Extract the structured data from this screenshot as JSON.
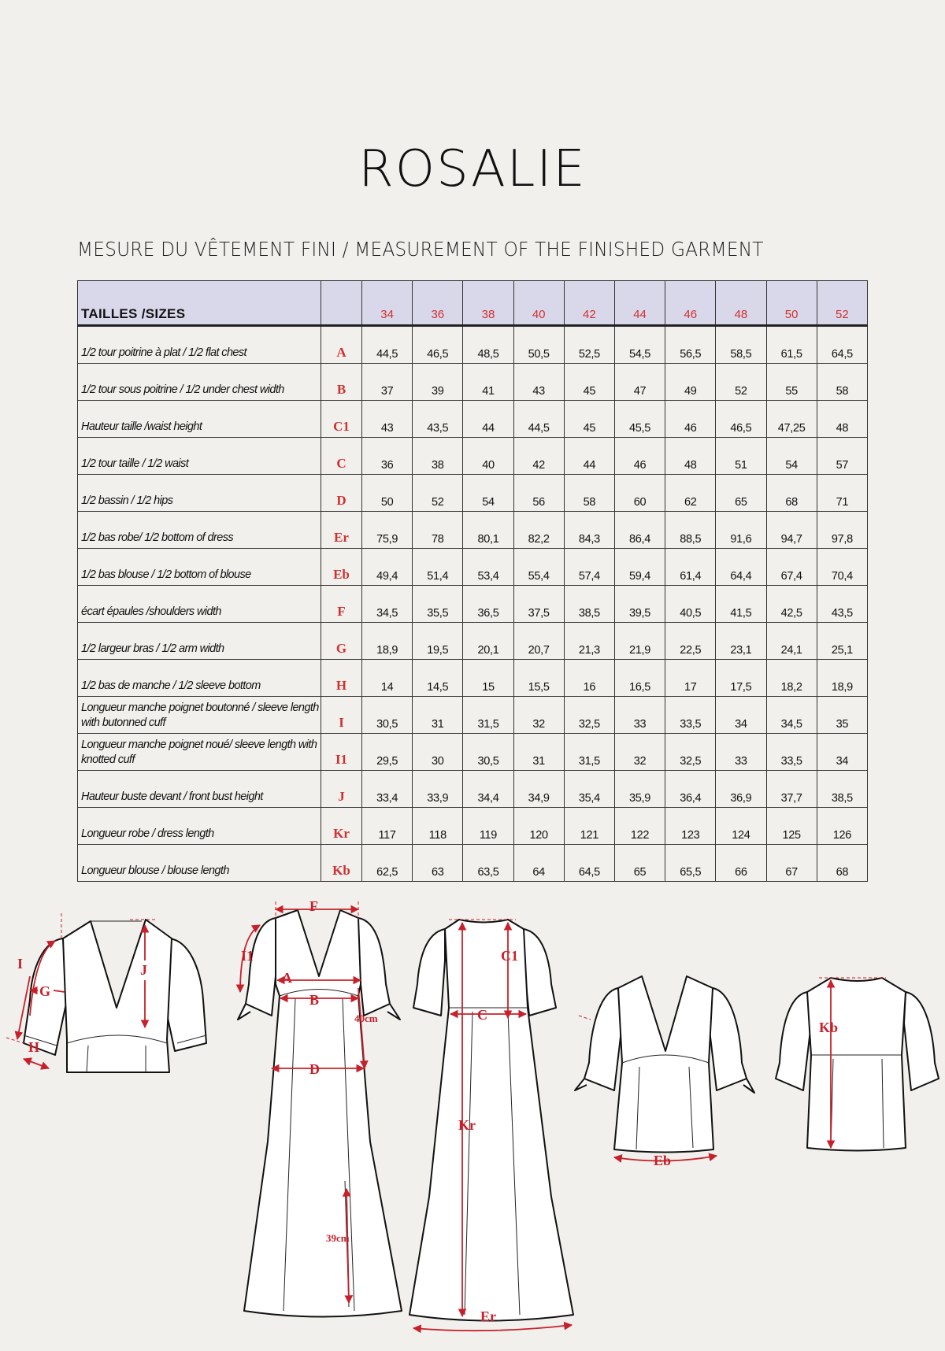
{
  "title": "ROSALIE",
  "subtitle": "MESURE DU VÊTEMENT FINI / MEASUREMENT OF THE FINISHED GARMENT",
  "colors": {
    "accent_red": "#c8202a",
    "header_bg": "#d9d8ea",
    "background": "#f1f0ec"
  },
  "table": {
    "header_label": "TAILLES /SIZES",
    "sizes": [
      "34",
      "36",
      "38",
      "40",
      "42",
      "44",
      "46",
      "48",
      "50",
      "52"
    ],
    "rows": [
      {
        "label": "1/2 tour poitrine à plat / 1/2 flat chest",
        "code": "A",
        "values": [
          "44,5",
          "46,5",
          "48,5",
          "50,5",
          "52,5",
          "54,5",
          "56,5",
          "58,5",
          "61,5",
          "64,5"
        ]
      },
      {
        "label": "1/2 tour sous poitrine / 1/2 under chest width",
        "code": "B",
        "values": [
          "37",
          "39",
          "41",
          "43",
          "45",
          "47",
          "49",
          "52",
          "55",
          "58"
        ]
      },
      {
        "label": "Hauteur taille /waist height",
        "code": "C1",
        "values": [
          "43",
          "43,5",
          "44",
          "44,5",
          "45",
          "45,5",
          "46",
          "46,5",
          "47,25",
          "48"
        ]
      },
      {
        "label": "1/2 tour taille /  1/2 waist",
        "code": "C",
        "values": [
          "36",
          "38",
          "40",
          "42",
          "44",
          "46",
          "48",
          "51",
          "54",
          "57"
        ]
      },
      {
        "label": "1/2 bassin / 1/2 hips",
        "code": "D",
        "values": [
          "50",
          "52",
          "54",
          "56",
          "58",
          "60",
          "62",
          "65",
          "68",
          "71"
        ]
      },
      {
        "label": "1/2 bas robe/ 1/2 bottom of dress",
        "code": "Er",
        "values": [
          "75,9",
          "78",
          "80,1",
          "82,2",
          "84,3",
          "86,4",
          "88,5",
          "91,6",
          "94,7",
          "97,8"
        ]
      },
      {
        "label": "1/2 bas blouse  / 1/2 bottom of blouse",
        "code": "Eb",
        "values": [
          "49,4",
          "51,4",
          "53,4",
          "55,4",
          "57,4",
          "59,4",
          "61,4",
          "64,4",
          "67,4",
          "70,4"
        ]
      },
      {
        "label": "écart épaules /shoulders width",
        "code": "F",
        "values": [
          "34,5",
          "35,5",
          "36,5",
          "37,5",
          "38,5",
          "39,5",
          "40,5",
          "41,5",
          "42,5",
          "43,5"
        ]
      },
      {
        "label": "1/2 largeur bras / 1/2 arm width",
        "code": "G",
        "values": [
          "18,9",
          "19,5",
          "20,1",
          "20,7",
          "21,3",
          "21,9",
          "22,5",
          "23,1",
          "24,1",
          "25,1"
        ]
      },
      {
        "label": "1/2 bas de manche / 1/2 sleeve bottom",
        "code": "H",
        "values": [
          "14",
          "14,5",
          "15",
          "15,5",
          "16",
          "16,5",
          "17",
          "17,5",
          "18,2",
          "18,9"
        ]
      },
      {
        "label": "Longueur manche poignet boutonné / sleeve length with butonned cuff",
        "code": "I",
        "values": [
          "30,5",
          "31",
          "31,5",
          "32",
          "32,5",
          "33",
          "33,5",
          "34",
          "34,5",
          "35"
        ]
      },
      {
        "label": "Longueur manche poignet noué/ sleeve length with knotted cuff",
        "code": "I1",
        "values": [
          "29,5",
          "30",
          "30,5",
          "31",
          "31,5",
          "32",
          "32,5",
          "33",
          "33,5",
          "34"
        ]
      },
      {
        "label": "Hauteur buste devant / front bust height",
        "code": "J",
        "values": [
          "33,4",
          "33,9",
          "34,4",
          "34,9",
          "35,4",
          "35,9",
          "36,4",
          "36,9",
          "37,7",
          "38,5"
        ]
      },
      {
        "label": "Longueur robe / dress length",
        "code": "Kr",
        "values": [
          "117",
          "118",
          "119",
          "120",
          "121",
          "122",
          "123",
          "124",
          "125",
          "126"
        ]
      },
      {
        "label": "Longueur blouse / blouse length",
        "code": "Kb",
        "values": [
          "62,5",
          "63",
          "63,5",
          "64",
          "64,5",
          "65",
          "65,5",
          "66",
          "67",
          "68"
        ]
      }
    ]
  },
  "figures": {
    "labels": {
      "I": "I",
      "G": "G",
      "J": "J",
      "H": "H",
      "F": "F",
      "I1": "I1",
      "A": "A",
      "B": "B",
      "cm40": "40cm",
      "D": "D",
      "cm39": "39cm",
      "C1": "C1",
      "C": "C",
      "Kr": "Kr",
      "Er": "Er",
      "Eb": "Eb",
      "Kb": "Kb"
    }
  }
}
